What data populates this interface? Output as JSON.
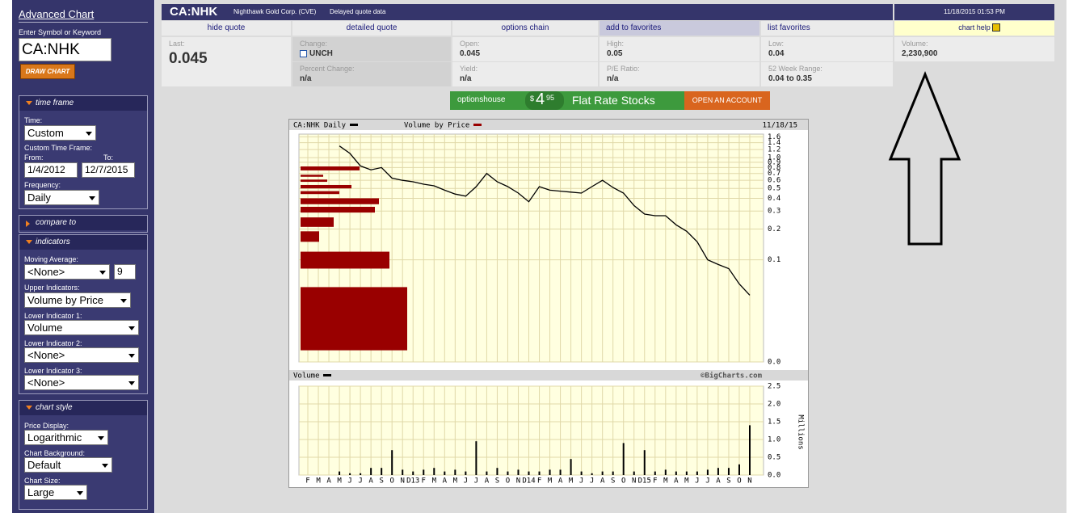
{
  "sidebar": {
    "title": "Advanced Chart",
    "symbol_label": "Enter Symbol or Keyword",
    "symbol": "CA:NHK",
    "draw_button": "DRAW CHART",
    "time_frame": {
      "heading": "time frame",
      "time_label": "Time:",
      "time": "Custom",
      "custom_label": "Custom Time Frame:",
      "from_label": "From:",
      "to_label": "To:",
      "from": "1/4/2012",
      "to": "12/7/2015",
      "frequency_label": "Frequency:",
      "frequency": "Daily"
    },
    "compare_to": {
      "heading": "compare to"
    },
    "indicators": {
      "heading": "indicators",
      "moving_average_label": "Moving Average:",
      "moving_average": "<None>",
      "moving_average_period": "9",
      "upper_label": "Upper Indicators:",
      "upper": "Volume by Price",
      "lower1_label": "Lower Indicator 1:",
      "lower1": "Volume",
      "lower2_label": "Lower Indicator 2:",
      "lower2": "<None>",
      "lower3_label": "Lower Indicator 3:",
      "lower3": "<None>"
    },
    "chart_style": {
      "heading": "chart style",
      "price_display_label": "Price Display:",
      "price_display": "Logarithmic",
      "background_label": "Chart Background:",
      "background": "Default",
      "size_label": "Chart Size:",
      "size": "Large"
    }
  },
  "quote": {
    "symbol": "CA:NHK",
    "company": "Nighthawk Gold Corp. (CVE)",
    "note": "Delayed quote data",
    "timestamp": "11/18/2015 01:53 PM",
    "tabs": [
      "hide quote",
      "detailed quote",
      "options chain",
      "add to favorites",
      "list favorites",
      "chart help"
    ],
    "cells": [
      {
        "label": "Last:",
        "value": "0.045"
      },
      {
        "label": "Change:",
        "value": "UNCH"
      },
      {
        "label": "Open:",
        "value": "0.045"
      },
      {
        "label": "High:",
        "value": "0.05"
      },
      {
        "label": "Low:",
        "value": "0.04"
      },
      {
        "label": "Volume:",
        "value": "2,230,900"
      },
      {
        "label": "Percent Change:",
        "value": "n/a"
      },
      {
        "label": "Yield:",
        "value": "n/a"
      },
      {
        "label": "P/E Ratio:",
        "value": "n/a"
      },
      {
        "label": "52 Week Range:",
        "value": "0.04 to 0.35"
      }
    ]
  },
  "ad": {
    "brand": "optionshouse",
    "dollar": "$",
    "price": "4",
    "cents": "95",
    "headline": "Flat Rate Stocks",
    "cta": "OPEN AN ACCOUNT"
  },
  "chart_data": [
    {
      "type": "line",
      "date": "11/18/15",
      "log_scale": true,
      "grid": true,
      "ylim": [
        0.01,
        1.7
      ],
      "yticks": [
        1.6,
        1.4,
        1.2,
        {
          "value": 1.0,
          "label": "1.0"
        },
        0.9,
        0.8,
        0.7,
        0.6,
        0.5,
        0.4,
        0.3,
        0.2,
        0.1,
        {
          "value": 0.01,
          "label": "0.0"
        }
      ],
      "series": [
        {
          "name": "CA:NHK Daily",
          "color": "#000000",
          "values": [
            null,
            null,
            null,
            1.3,
            1.1,
            0.83,
            0.76,
            0.8,
            0.63,
            0.6,
            0.58,
            0.55,
            0.53,
            0.48,
            0.44,
            0.42,
            0.52,
            0.7,
            0.58,
            0.52,
            0.45,
            0.37,
            0.52,
            0.48,
            0.47,
            0.46,
            0.45,
            0.52,
            0.6,
            0.51,
            0.45,
            0.34,
            0.28,
            0.27,
            0.27,
            0.22,
            0.19,
            0.15,
            0.1,
            0.09,
            0.082,
            0.058,
            0.045
          ]
        },
        {
          "name": "Volume by Price",
          "color": "#990000",
          "price_high": [
            0.82,
            0.68,
            0.61,
            0.54,
            0.47,
            0.4,
            0.33,
            0.26,
            0.19,
            0.12,
            0.054
          ],
          "price_low": [
            0.75,
            0.65,
            0.58,
            0.5,
            0.44,
            0.35,
            0.29,
            0.21,
            0.15,
            0.082,
            0.013
          ],
          "values": [
            7.3,
            2.8,
            3.3,
            6.3,
            4.8,
            9.7,
            9.2,
            4.1,
            2.3,
            11,
            13.2
          ]
        }
      ]
    },
    {
      "type": "bar",
      "credit": "©BigCharts.com",
      "ylabel": "Millions",
      "grid": true,
      "ylim": [
        0,
        2.5
      ],
      "yticks": [
        2.5,
        {
          "value": 2,
          "label": "2.0"
        },
        1.5,
        {
          "value": 1,
          "label": "1.0"
        },
        0.5,
        {
          "value": 0,
          "label": "0.0"
        }
      ],
      "categories": [
        "F",
        "M",
        "A",
        "M",
        "J",
        "J",
        "A",
        "S",
        "O",
        "N",
        "D13",
        "F",
        "M",
        "A",
        "M",
        "J",
        "J",
        "A",
        "S",
        "O",
        "N",
        "D14",
        "F",
        "M",
        "A",
        "M",
        "J",
        "J",
        "A",
        "S",
        "O",
        "N",
        "D15",
        "F",
        "M",
        "A",
        "M",
        "J",
        "J",
        "A",
        "S",
        "O",
        "N"
      ],
      "series": [
        {
          "name": "Volume",
          "color": "#000000",
          "values": [
            0,
            0,
            0,
            0.1,
            0.05,
            0.05,
            0.2,
            0.2,
            0.7,
            0.15,
            0.1,
            0.15,
            0.2,
            0.1,
            0.15,
            0.1,
            0.95,
            0.1,
            0.2,
            0.1,
            0.15,
            0.1,
            0.1,
            0.15,
            0.15,
            0.45,
            0.1,
            0.05,
            0.1,
            0.1,
            0.9,
            0.1,
            0.7,
            0.1,
            0.15,
            0.1,
            0.1,
            0.1,
            0.15,
            0.2,
            0.2,
            0.3,
            1.4
          ]
        }
      ]
    }
  ]
}
